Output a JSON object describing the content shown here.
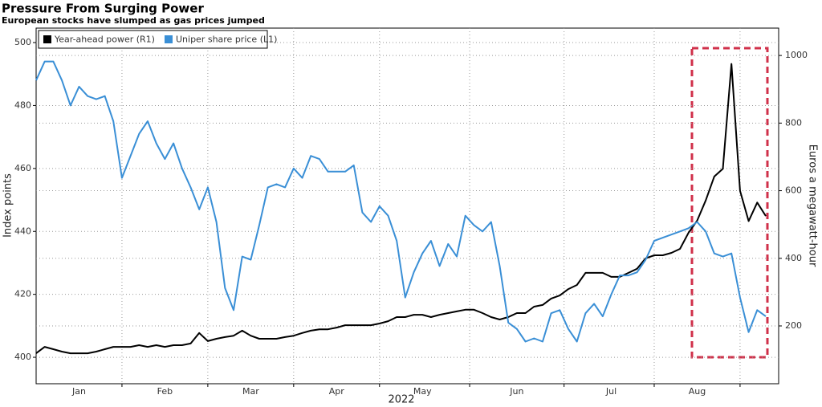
{
  "chart_data": {
    "type": "line",
    "title": "Pressure From Surging Power",
    "subtitle": "European stocks have slumped as gas prices jumped",
    "xlabel": "2022",
    "ylabel": "Index points",
    "y2label": "Euros a megawatt-hour",
    "categories": [
      null,
      null,
      null,
      null,
      null,
      "Jan",
      null,
      null,
      null,
      null,
      null,
      null,
      null,
      null,
      null,
      "Feb",
      null,
      null,
      null,
      null,
      null,
      null,
      null,
      null,
      null,
      "Mar",
      null,
      null,
      null,
      null,
      null,
      null,
      null,
      null,
      null,
      "Apr",
      null,
      null,
      null,
      null,
      null,
      null,
      null,
      null,
      null,
      "May",
      null,
      null,
      null,
      null,
      null,
      null,
      null,
      null,
      null,
      null,
      "Jun",
      null,
      null,
      null,
      null,
      null,
      null,
      null,
      null,
      null,
      null,
      "Jul",
      null,
      null,
      null,
      null,
      null,
      null,
      null,
      null,
      null,
      "Aug",
      null,
      null,
      null,
      null,
      null,
      null,
      null,
      null
    ],
    "series": [
      {
        "name": "Year-ahead power (R1)",
        "color": "#000000",
        "axis": "y2",
        "values": [
          119,
          138,
          131,
          124,
          119,
          119,
          119,
          124,
          131,
          138,
          138,
          138,
          143,
          138,
          143,
          138,
          143,
          143,
          148,
          179,
          155,
          162,
          167,
          171,
          186,
          171,
          162,
          162,
          162,
          167,
          171,
          179,
          186,
          190,
          190,
          195,
          202,
          202,
          202,
          202,
          207,
          214,
          226,
          226,
          233,
          233,
          226,
          233,
          238,
          243,
          248,
          248,
          238,
          226,
          219,
          226,
          238,
          238,
          257,
          262,
          281,
          290,
          309,
          321,
          357,
          357,
          357,
          345,
          345,
          357,
          369,
          400,
          409,
          409,
          416,
          428,
          476,
          511,
          571,
          642,
          665,
          975,
          600,
          510,
          565,
          525
        ]
      },
      {
        "name": "Uniper share price (L1)",
        "color": "#3a8fd6",
        "values": [
          488,
          494,
          494,
          488,
          480,
          486,
          483,
          482,
          483,
          475,
          457,
          464,
          471,
          475,
          468,
          463,
          468,
          460,
          454,
          447,
          454,
          443,
          422,
          415,
          432,
          431,
          442,
          454,
          455,
          454,
          460,
          457,
          464,
          463,
          459,
          459,
          459,
          461,
          446,
          443,
          448,
          445,
          437,
          419,
          427,
          433,
          437,
          429,
          436,
          432,
          445,
          442,
          440,
          443,
          429,
          411,
          409,
          405,
          406,
          405,
          414,
          415,
          409,
          405,
          414,
          417,
          413,
          420,
          426,
          426,
          427,
          431,
          437,
          438,
          439,
          440,
          441,
          443,
          440,
          433,
          432,
          433,
          419,
          408,
          415,
          413
        ]
      }
    ],
    "ylim": [
      391.6,
      504.6
    ],
    "yticks": [
      400,
      420,
      440,
      460,
      480,
      500
    ],
    "y2lim": [
      29,
      1081
    ],
    "y2ticks": [
      200,
      400,
      600,
      800,
      1000
    ],
    "grid": true,
    "legend": "top-left"
  }
}
